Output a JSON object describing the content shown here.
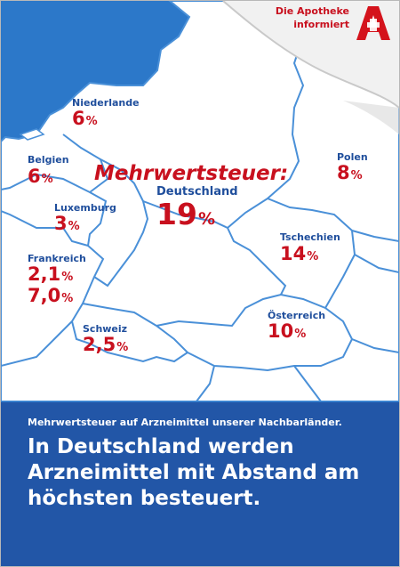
{
  "badge": {
    "line1": "Die Apotheke",
    "line2": "informiert",
    "logo_name": "apotheke-a-logo"
  },
  "heading": "Mehrwertsteuer:",
  "countries": {
    "niederlande": {
      "name": "Niederlande",
      "rate": "6",
      "unit": "%"
    },
    "belgien": {
      "name": "Belgien",
      "rate": "6",
      "unit": "%"
    },
    "luxemburg": {
      "name": "Luxemburg",
      "rate": "3",
      "unit": "%"
    },
    "frankreich": {
      "name": "Frankreich",
      "rate1": "2,1",
      "rate2": "7,0",
      "unit": "%"
    },
    "deutschland": {
      "name": "Deutschland",
      "rate": "19",
      "unit": "%"
    },
    "polen": {
      "name": "Polen",
      "rate": "8",
      "unit": "%"
    },
    "tschechien": {
      "name": "Tschechien",
      "rate": "14",
      "unit": "%"
    },
    "oesterreich": {
      "name": "Österreich",
      "rate": "10",
      "unit": "%"
    },
    "schweiz": {
      "name": "Schweiz",
      "rate": "2,5",
      "unit": "%"
    }
  },
  "footer": {
    "subtitle": "Mehrwertsteuer auf Arzneimittel unserer Nachbarländer.",
    "headline": "In Deutschland werden Arzneimittel mit Abstand am höchsten besteuert."
  },
  "colors": {
    "accent_red": "#c8101e",
    "label_blue": "#1f4e9c",
    "banner_blue": "#2256a7",
    "map_sea": "#2c78c9"
  }
}
